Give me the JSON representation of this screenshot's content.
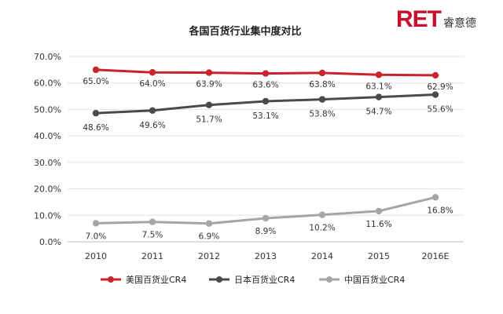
{
  "logo": {
    "mark": "RET",
    "cn": "睿意德"
  },
  "chart_data": {
    "type": "line",
    "title": "各国百货行业集中度对比",
    "categories": [
      "2010",
      "2011",
      "2012",
      "2013",
      "2014",
      "2015",
      "2016E"
    ],
    "ylim": [
      0,
      70
    ],
    "yticks": [
      "0.0%",
      "10.0%",
      "20.0%",
      "30.0%",
      "40.0%",
      "50.0%",
      "60.0%",
      "70.0%"
    ],
    "grid": true,
    "legend_position": "bottom",
    "series": [
      {
        "name": "美国百货业CR4",
        "color": "#c8242b",
        "values": [
          65.0,
          64.0,
          63.9,
          63.6,
          63.8,
          63.1,
          62.9
        ],
        "labels": [
          "65.0%",
          "64.0%",
          "63.9%",
          "63.6%",
          "63.8%",
          "63.1%",
          "62.9%"
        ]
      },
      {
        "name": "日本百货业CR4",
        "color": "#4a4a4a",
        "values": [
          48.6,
          49.6,
          51.7,
          53.1,
          53.8,
          54.7,
          55.6
        ],
        "labels": [
          "48.6%",
          "49.6%",
          "51.7%",
          "53.1%",
          "53.8%",
          "54.7%",
          "55.6%"
        ]
      },
      {
        "name": "中国百货业CR4",
        "color": "#a6a6a6",
        "values": [
          7.0,
          7.5,
          6.9,
          8.9,
          10.2,
          11.6,
          16.8
        ],
        "labels": [
          "7.0%",
          "7.5%",
          "6.9%",
          "8.9%",
          "10.2%",
          "11.6%",
          "16.8%"
        ]
      }
    ]
  }
}
